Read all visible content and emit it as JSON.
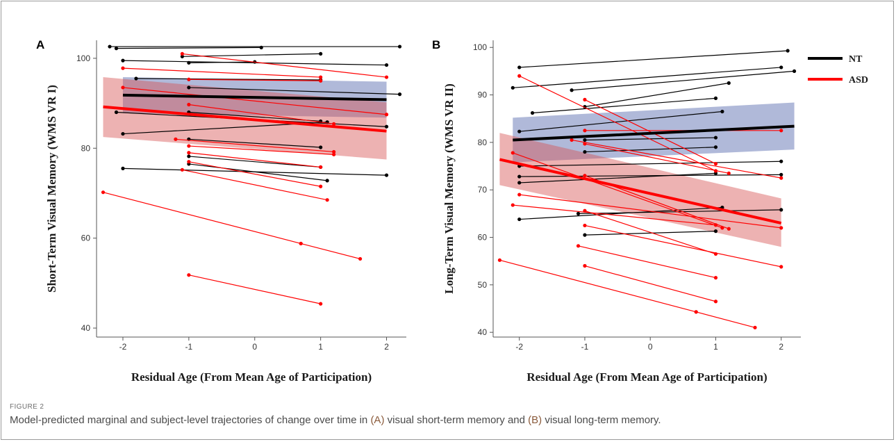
{
  "figure_label": "FIGURE 2",
  "caption": {
    "part1": "Model-predicted marginal and subject-level trajectories of change over time in ",
    "ref_a": "(A)",
    "part2": " visual short-term memory and ",
    "ref_b": "(B)",
    "part3": " visual long-term memory."
  },
  "legend": [
    {
      "name": "NT",
      "color": "#000000"
    },
    {
      "name": "ASD",
      "color": "#ff0000"
    }
  ],
  "chart_data": [
    {
      "type": "line",
      "panel": "A",
      "xlabel": "Residual Age (From Mean Age of Participation)",
      "ylabel": "Short-Term Visual Memory (WMS VR I)",
      "xticks": [
        -2,
        -1,
        0,
        1,
        2
      ],
      "yticks": [
        40,
        60,
        80,
        100
      ],
      "xlim": [
        -2.4,
        2.3
      ],
      "ylim": [
        38,
        104
      ],
      "grid": false,
      "fit": [
        {
          "group": "NT",
          "x": [
            -2,
            2
          ],
          "y": [
            91.8,
            90.8
          ],
          "ci_low": [
            87.8,
            86.8
          ],
          "ci_high": [
            95.8,
            94.8
          ]
        },
        {
          "group": "ASD",
          "x": [
            -2.3,
            2
          ],
          "y": [
            89.2,
            83.8
          ],
          "ci_low": [
            82.5,
            77.5
          ],
          "ci_high": [
            95.8,
            90.2
          ]
        }
      ],
      "subjects": [
        {
          "g": "NT",
          "x": [
            -2.2,
            2.2
          ],
          "y": [
            102.6,
            102.6
          ]
        },
        {
          "g": "NT",
          "x": [
            -2.1,
            0.1
          ],
          "y": [
            102.2,
            102.4
          ]
        },
        {
          "g": "NT",
          "x": [
            -1.1,
            1.0
          ],
          "y": [
            100.4,
            101.0
          ]
        },
        {
          "g": "NT",
          "x": [
            -2.0,
            2.0
          ],
          "y": [
            99.5,
            98.5
          ]
        },
        {
          "g": "NT",
          "x": [
            -1.0,
            0.0
          ],
          "y": [
            99.0,
            99.2
          ]
        },
        {
          "g": "NT",
          "x": [
            -1.8,
            1.0
          ],
          "y": [
            95.5,
            95.2
          ]
        },
        {
          "g": "NT",
          "x": [
            -1.0,
            2.2
          ],
          "y": [
            93.5,
            92.0
          ]
        },
        {
          "g": "NT",
          "x": [
            -2.1,
            2.0
          ],
          "y": [
            88.0,
            84.8
          ]
        },
        {
          "g": "NT",
          "x": [
            -1.0,
            1.0
          ],
          "y": [
            88.0,
            86.0
          ]
        },
        {
          "g": "NT",
          "x": [
            -2.0,
            1.1
          ],
          "y": [
            83.2,
            85.8
          ]
        },
        {
          "g": "NT",
          "x": [
            -1.0,
            1.0
          ],
          "y": [
            82.0,
            80.2
          ]
        },
        {
          "g": "NT",
          "x": [
            -2.0,
            2.0
          ],
          "y": [
            75.5,
            74.0
          ]
        },
        {
          "g": "NT",
          "x": [
            -1.0,
            1.0
          ],
          "y": [
            78.2,
            75.8
          ]
        },
        {
          "g": "NT",
          "x": [
            -1.0,
            1.1
          ],
          "y": [
            76.5,
            72.8
          ]
        },
        {
          "g": "ASD",
          "x": [
            -2.0,
            1.0
          ],
          "y": [
            97.8,
            95.8
          ]
        },
        {
          "g": "ASD",
          "x": [
            -1.1,
            2.0
          ],
          "y": [
            101.0,
            95.8
          ]
        },
        {
          "g": "ASD",
          "x": [
            -1.0,
            1.0
          ],
          "y": [
            95.3,
            95.0
          ]
        },
        {
          "g": "ASD",
          "x": [
            -2.0,
            2.0
          ],
          "y": [
            93.5,
            87.5
          ]
        },
        {
          "g": "ASD",
          "x": [
            -1.0,
            1.2
          ],
          "y": [
            89.7,
            85.4
          ]
        },
        {
          "g": "ASD",
          "x": [
            -1.2,
            1.2
          ],
          "y": [
            82.0,
            79.2
          ]
        },
        {
          "g": "ASD",
          "x": [
            -1.0,
            1.2
          ],
          "y": [
            80.5,
            78.6
          ]
        },
        {
          "g": "ASD",
          "x": [
            -1.0,
            1.0
          ],
          "y": [
            79.0,
            75.8
          ]
        },
        {
          "g": "ASD",
          "x": [
            -1.0,
            1.0
          ],
          "y": [
            77.0,
            71.5
          ]
        },
        {
          "g": "ASD",
          "x": [
            -1.1,
            1.1
          ],
          "y": [
            75.2,
            68.5
          ]
        },
        {
          "g": "ASD",
          "x": [
            -2.3,
            0.7
          ],
          "y": [
            70.2,
            58.8
          ]
        },
        {
          "g": "ASD",
          "x": [
            0.7,
            1.6
          ],
          "y": [
            58.8,
            55.4
          ]
        },
        {
          "g": "ASD",
          "x": [
            -1.0,
            1.0
          ],
          "y": [
            51.8,
            45.4
          ]
        }
      ]
    },
    {
      "type": "line",
      "panel": "B",
      "xlabel": "Residual Age (From Mean Age of Participation)",
      "ylabel": "Long-Term Visual Memory (WMS VR II)",
      "xticks": [
        -2,
        -1,
        0,
        1,
        2
      ],
      "yticks": [
        40,
        50,
        60,
        70,
        80,
        90,
        100
      ],
      "xlim": [
        -2.4,
        2.3
      ],
      "ylim": [
        39,
        101.5
      ],
      "grid": false,
      "fit": [
        {
          "group": "NT",
          "x": [
            -2.1,
            2.2
          ],
          "y": [
            80.5,
            83.4
          ],
          "ci_low": [
            75.8,
            78.5
          ],
          "ci_high": [
            85.2,
            88.4
          ]
        },
        {
          "group": "ASD",
          "x": [
            -2.3,
            2.0
          ],
          "y": [
            76.4,
            63.0
          ],
          "ci_low": [
            71.0,
            58.0
          ],
          "ci_high": [
            82.0,
            68.2
          ]
        }
      ],
      "subjects": [
        {
          "g": "NT",
          "x": [
            -2.0,
            2.1
          ],
          "y": [
            95.8,
            99.3
          ]
        },
        {
          "g": "NT",
          "x": [
            -2.1,
            2.0
          ],
          "y": [
            91.5,
            95.8
          ]
        },
        {
          "g": "NT",
          "x": [
            -1.2,
            2.2
          ],
          "y": [
            91.0,
            95.0
          ]
        },
        {
          "g": "NT",
          "x": [
            -1.0,
            1.2
          ],
          "y": [
            87.5,
            92.5
          ]
        },
        {
          "g": "NT",
          "x": [
            -1.8,
            1.0
          ],
          "y": [
            86.2,
            89.3
          ]
        },
        {
          "g": "NT",
          "x": [
            -2.0,
            1.1
          ],
          "y": [
            82.3,
            86.5
          ]
        },
        {
          "g": "NT",
          "x": [
            -1.0,
            1.0
          ],
          "y": [
            80.5,
            81.0
          ]
        },
        {
          "g": "NT",
          "x": [
            -1.0,
            1.0
          ],
          "y": [
            78.0,
            79.0
          ]
        },
        {
          "g": "NT",
          "x": [
            -2.0,
            2.0
          ],
          "y": [
            75.0,
            76.0
          ]
        },
        {
          "g": "NT",
          "x": [
            -2.0,
            2.0
          ],
          "y": [
            72.8,
            73.2
          ]
        },
        {
          "g": "NT",
          "x": [
            -2.0,
            1.0
          ],
          "y": [
            71.5,
            73.5
          ]
        },
        {
          "g": "NT",
          "x": [
            -2.0,
            1.1
          ],
          "y": [
            63.8,
            66.3
          ]
        },
        {
          "g": "NT",
          "x": [
            -1.1,
            2.0
          ],
          "y": [
            65.0,
            65.8
          ]
        },
        {
          "g": "NT",
          "x": [
            -1.0,
            1.0
          ],
          "y": [
            60.5,
            61.3
          ]
        },
        {
          "g": "ASD",
          "x": [
            -2.0,
            1.0
          ],
          "y": [
            94.0,
            74.0
          ]
        },
        {
          "g": "ASD",
          "x": [
            -1.0,
            1.0
          ],
          "y": [
            89.0,
            75.5
          ]
        },
        {
          "g": "ASD",
          "x": [
            -1.0,
            2.0
          ],
          "y": [
            82.5,
            82.5
          ]
        },
        {
          "g": "ASD",
          "x": [
            -1.0,
            1.2
          ],
          "y": [
            79.7,
            73.5
          ]
        },
        {
          "g": "ASD",
          "x": [
            -1.2,
            2.0
          ],
          "y": [
            80.5,
            72.5
          ]
        },
        {
          "g": "ASD",
          "x": [
            -2.1,
            1.1
          ],
          "y": [
            77.8,
            62.0
          ]
        },
        {
          "g": "ASD",
          "x": [
            -1.0,
            1.2
          ],
          "y": [
            73.0,
            61.8
          ]
        },
        {
          "g": "ASD",
          "x": [
            -2.0,
            2.0
          ],
          "y": [
            69.0,
            62.0
          ]
        },
        {
          "g": "ASD",
          "x": [
            -2.1,
            1.0
          ],
          "y": [
            66.8,
            62.6
          ]
        },
        {
          "g": "ASD",
          "x": [
            -1.0,
            1.0
          ],
          "y": [
            65.6,
            56.5
          ]
        },
        {
          "g": "ASD",
          "x": [
            -1.0,
            2.0
          ],
          "y": [
            62.5,
            53.8
          ]
        },
        {
          "g": "ASD",
          "x": [
            -1.1,
            1.0
          ],
          "y": [
            58.2,
            51.5
          ]
        },
        {
          "g": "ASD",
          "x": [
            -1.0,
            1.0
          ],
          "y": [
            54.0,
            46.5
          ]
        },
        {
          "g": "ASD",
          "x": [
            -2.3,
            0.7
          ],
          "y": [
            55.2,
            44.3
          ]
        },
        {
          "g": "ASD",
          "x": [
            0.7,
            1.6
          ],
          "y": [
            44.3,
            41.0
          ]
        }
      ]
    }
  ]
}
